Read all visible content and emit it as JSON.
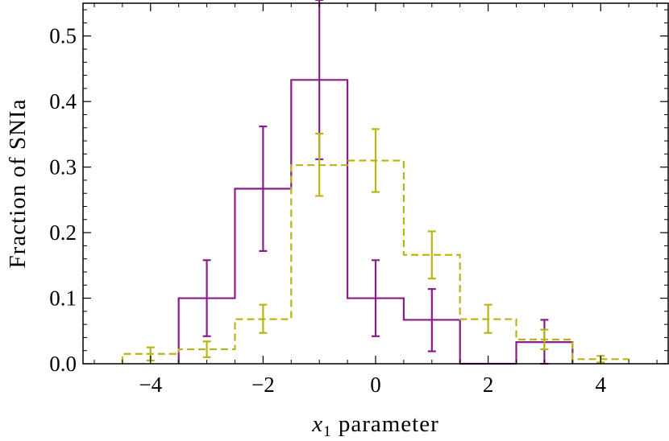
{
  "chart_data": {
    "type": "histogram",
    "title": "",
    "xlabel": {
      "var": "x",
      "sub": "1",
      "rest": " parameter"
    },
    "ylabel": "Fraction of SNIa",
    "xlim": [
      -5.2,
      5.2
    ],
    "ylim": [
      0,
      0.55
    ],
    "x_ticks": [
      -4,
      -2,
      0,
      2,
      4
    ],
    "x_tick_labels": [
      "−4",
      "−2",
      "0",
      "2",
      "4"
    ],
    "y_ticks": [
      0,
      0.1,
      0.2,
      0.3,
      0.4,
      0.5
    ],
    "y_tick_labels": [
      "0.0",
      "0.1",
      "0.2",
      "0.3",
      "0.4",
      "0.5"
    ],
    "grid": false,
    "series": [
      {
        "color": "#8b1a8b",
        "style": "solid",
        "bin_edges": [
          -3.5,
          -2.5,
          -1.5,
          -0.5,
          0.5,
          1.5,
          2.5,
          3.5
        ],
        "values": [
          0.1,
          0.267,
          0.433,
          0.1,
          0.067,
          0.0,
          0.033
        ],
        "error_x": [
          -3,
          -2,
          -1,
          0,
          1,
          3
        ],
        "error_y": [
          0.1,
          0.267,
          0.433,
          0.1,
          0.067,
          0.033
        ],
        "error_low": [
          0.042,
          0.172,
          0.312,
          0.042,
          0.019,
          0.0
        ],
        "error_high": [
          0.158,
          0.362,
          0.555,
          0.158,
          0.114,
          0.067
        ]
      },
      {
        "color": "#b8b614",
        "style": "dashed",
        "bin_edges": [
          -4.5,
          -3.5,
          -2.5,
          -1.5,
          -0.5,
          0.5,
          1.5,
          2.5,
          3.5,
          4.5
        ],
        "values": [
          0.015,
          0.022,
          0.068,
          0.303,
          0.31,
          0.166,
          0.068,
          0.037,
          0.007
        ],
        "error_x": [
          -4,
          -3,
          -2,
          -1,
          0,
          1,
          2,
          3,
          4
        ],
        "error_y": [
          0.015,
          0.022,
          0.068,
          0.303,
          0.31,
          0.166,
          0.068,
          0.037,
          0.007
        ],
        "error_low": [
          0.005,
          0.01,
          0.047,
          0.256,
          0.262,
          0.13,
          0.047,
          0.022,
          0.002
        ],
        "error_high": [
          0.025,
          0.034,
          0.09,
          0.351,
          0.358,
          0.202,
          0.09,
          0.052,
          0.012
        ]
      }
    ]
  }
}
